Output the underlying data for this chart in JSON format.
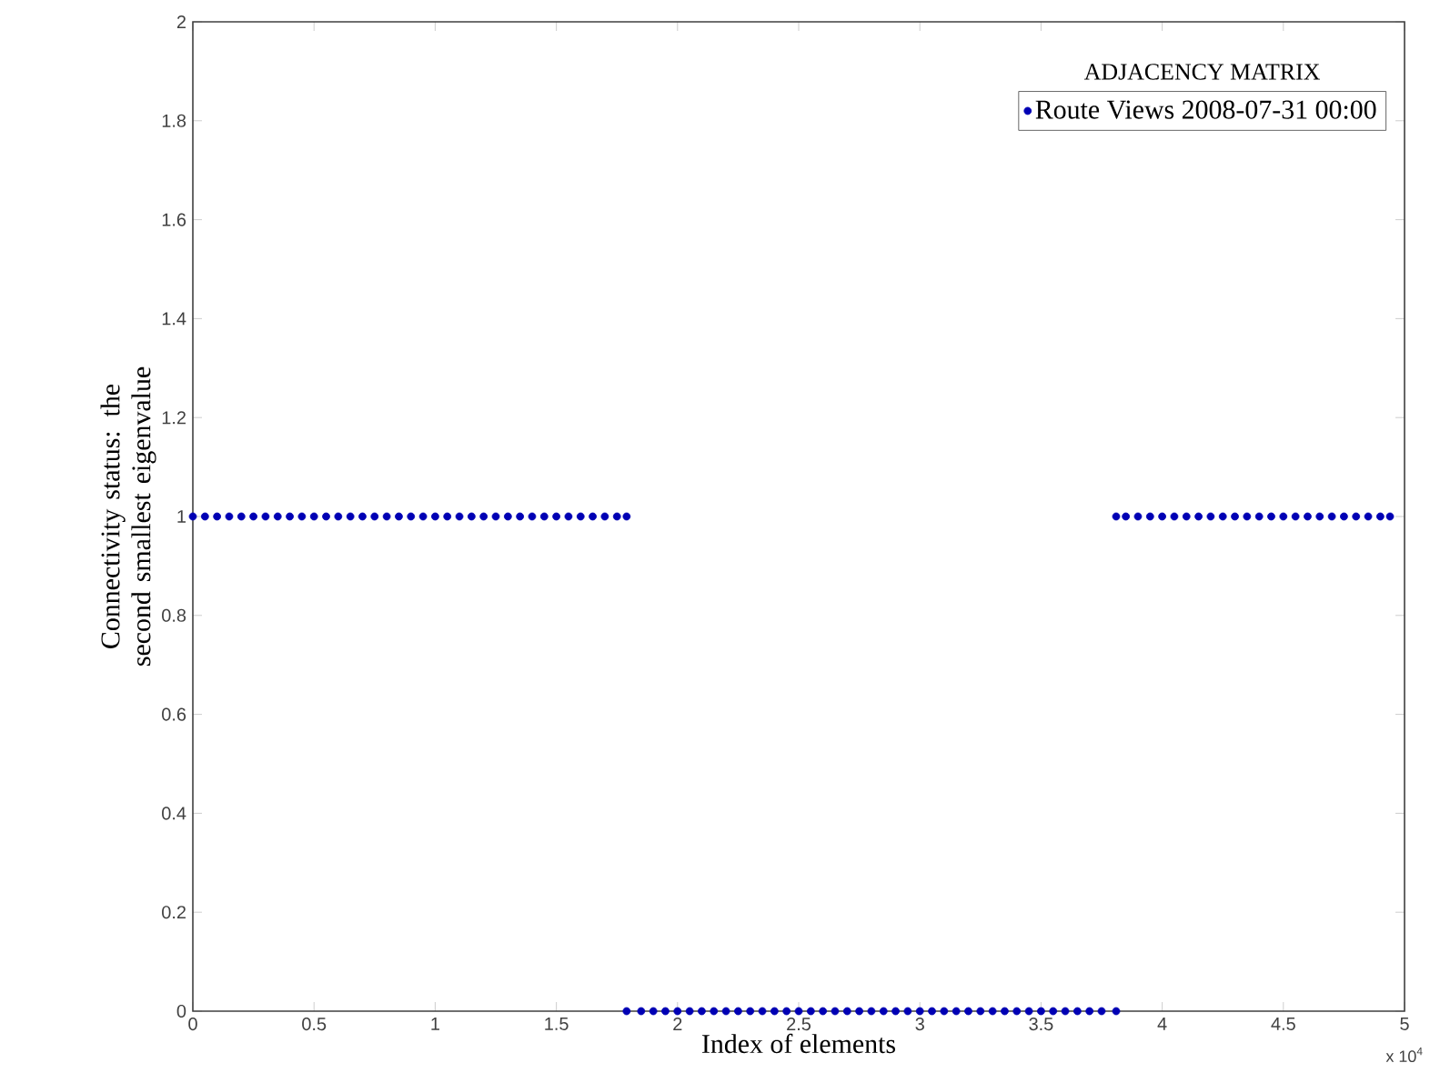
{
  "chart_data": {
    "type": "scatter",
    "legend_title": "ADJACENCY MATRIX",
    "xlabel": "Index of elements",
    "ylabel": "Connectivity status: the second smallest eigenvalue",
    "annotations": [
      "x 10$^{4}$"
    ],
    "xlim": [
      0,
      5
    ],
    "ylim": [
      0,
      2
    ],
    "xticks": [
      0,
      0.5,
      1,
      1.5,
      2,
      2.5,
      3,
      3.5,
      4,
      4.5,
      5
    ],
    "yticks": [
      0,
      0.2,
      0.4,
      0.6,
      0.8,
      1,
      1.2,
      1.4,
      1.6,
      1.8,
      2
    ],
    "legend": "top right",
    "marker": "circle",
    "series": [
      {
        "name": "Route Views 2008-07-31 00:00",
        "color": "#0000b4",
        "x": [
          0,
          0.05,
          0.1,
          0.15,
          0.2,
          0.25,
          0.3,
          0.35,
          0.4,
          0.45,
          0.5,
          0.55,
          0.6,
          0.65,
          0.7,
          0.75,
          0.8,
          0.85,
          0.9,
          0.95,
          1,
          1.05,
          1.1,
          1.15,
          1.2,
          1.25,
          1.3,
          1.35,
          1.4,
          1.45,
          1.5,
          1.55,
          1.6,
          1.65,
          1.7,
          1.75,
          1.79,
          1.79,
          1.85,
          1.9,
          1.95,
          2,
          2.05,
          2.1,
          2.15,
          2.2,
          2.25,
          2.3,
          2.35,
          2.4,
          2.45,
          2.5,
          2.55,
          2.6,
          2.65,
          2.7,
          2.75,
          2.8,
          2.85,
          2.9,
          2.95,
          3,
          3.05,
          3.1,
          3.15,
          3.2,
          3.25,
          3.3,
          3.35,
          3.4,
          3.45,
          3.5,
          3.55,
          3.6,
          3.65,
          3.7,
          3.75,
          3.81,
          3.81,
          3.85,
          3.9,
          3.95,
          4,
          4.05,
          4.1,
          4.15,
          4.2,
          4.25,
          4.3,
          4.35,
          4.4,
          4.45,
          4.5,
          4.55,
          4.6,
          4.65,
          4.7,
          4.75,
          4.8,
          4.85,
          4.9,
          4.94
        ],
        "values": [
          1,
          1,
          1,
          1,
          1,
          1,
          1,
          1,
          1,
          1,
          1,
          1,
          1,
          1,
          1,
          1,
          1,
          1,
          1,
          1,
          1,
          1,
          1,
          1,
          1,
          1,
          1,
          1,
          1,
          1,
          1,
          1,
          1,
          1,
          1,
          1,
          1,
          0,
          0,
          0,
          0,
          0,
          0,
          0,
          0,
          0,
          0,
          0,
          0,
          0,
          0,
          0,
          0,
          0,
          0,
          0,
          0,
          0,
          0,
          0,
          0,
          0,
          0,
          0,
          0,
          0,
          0,
          0,
          0,
          0,
          0,
          0,
          0,
          0,
          0,
          0,
          0,
          0,
          1,
          1,
          1,
          1,
          1,
          1,
          1,
          1,
          1,
          1,
          1,
          1,
          1,
          1,
          1,
          1,
          1,
          1,
          1,
          1,
          1,
          1,
          1,
          1
        ]
      }
    ]
  }
}
